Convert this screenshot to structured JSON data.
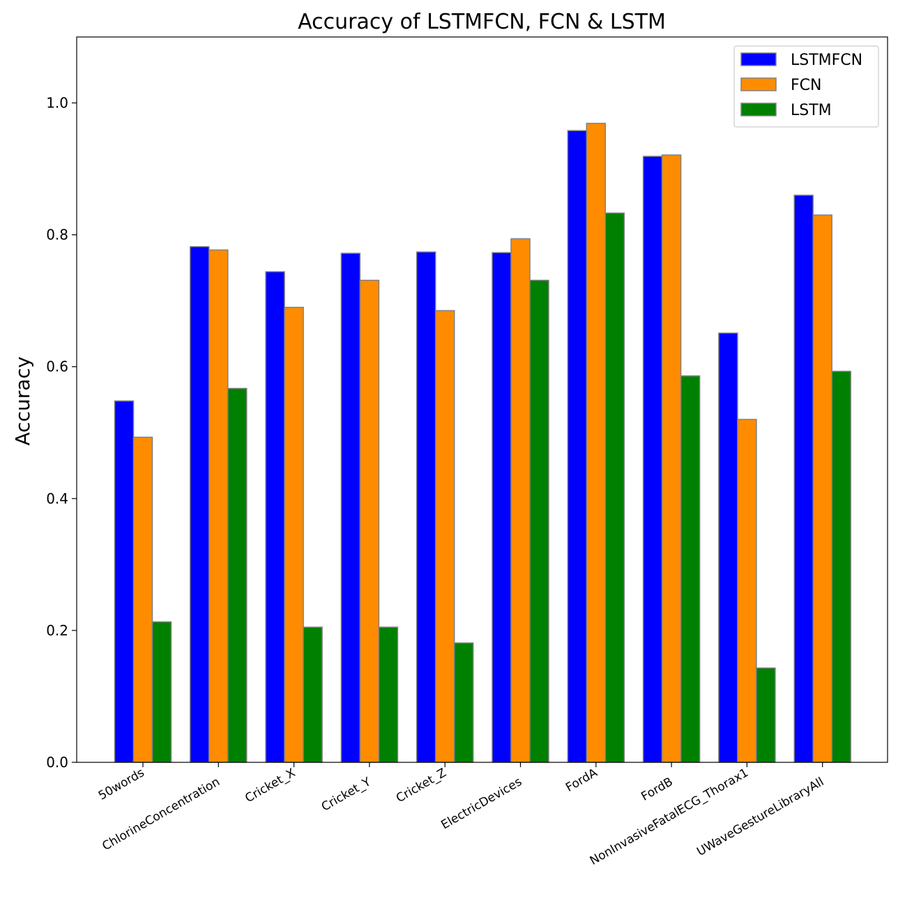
{
  "chart_data": {
    "type": "bar",
    "title": "Accuracy of LSTMFCN, FCN & LSTM",
    "xlabel": "",
    "ylabel": "Accuracy",
    "ylim": [
      0,
      1.1
    ],
    "yticks": [
      "0.0",
      "0.2",
      "0.4",
      "0.6",
      "0.8",
      "1.0"
    ],
    "grid": false,
    "legend_position": "top-right",
    "categories": [
      "50words",
      "ChlorineConcentration",
      "Cricket_X",
      "Cricket_Y",
      "Cricket_Z",
      "ElectricDevices",
      "FordA",
      "FordB",
      "NonInvasiveFatalECG_Thorax1",
      "UWaveGestureLibraryAll"
    ],
    "series": [
      {
        "name": "LSTMFCN",
        "color": "#0000ff",
        "values": [
          0.548,
          0.782,
          0.744,
          0.772,
          0.774,
          0.773,
          0.958,
          0.919,
          0.651,
          0.86
        ]
      },
      {
        "name": "FCN",
        "color": "#ff8c00",
        "values": [
          0.493,
          0.777,
          0.69,
          0.731,
          0.685,
          0.794,
          0.969,
          0.921,
          0.52,
          0.83
        ]
      },
      {
        "name": "LSTM",
        "color": "#008000",
        "values": [
          0.213,
          0.567,
          0.205,
          0.205,
          0.181,
          0.731,
          0.833,
          0.586,
          0.143,
          0.593
        ]
      }
    ]
  }
}
